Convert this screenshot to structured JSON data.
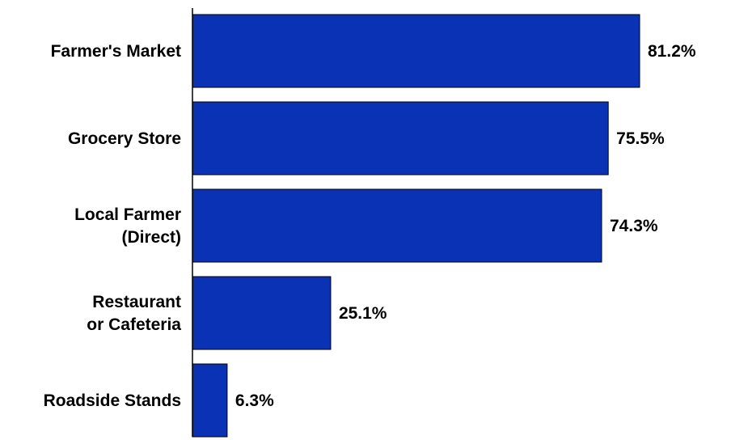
{
  "chart_data": {
    "type": "bar",
    "orientation": "horizontal",
    "title": "",
    "xlabel": "",
    "ylabel": "",
    "categories": [
      [
        "Farmer's Market"
      ],
      [
        "Grocery Store"
      ],
      [
        "Local Farmer",
        "(Direct)"
      ],
      [
        "Restaurant",
        "or Cafeteria"
      ],
      [
        "Roadside Stands"
      ]
    ],
    "values": [
      81.2,
      75.5,
      74.3,
      25.1,
      6.3
    ],
    "value_labels": [
      "81.2%",
      "75.5%",
      "74.3%",
      "25.1%",
      "6.3%"
    ],
    "xlim": [
      0,
      100
    ],
    "grid": false,
    "legend": "none",
    "bar_color": "#0a32b4",
    "bar_edge_color": "#000000"
  }
}
